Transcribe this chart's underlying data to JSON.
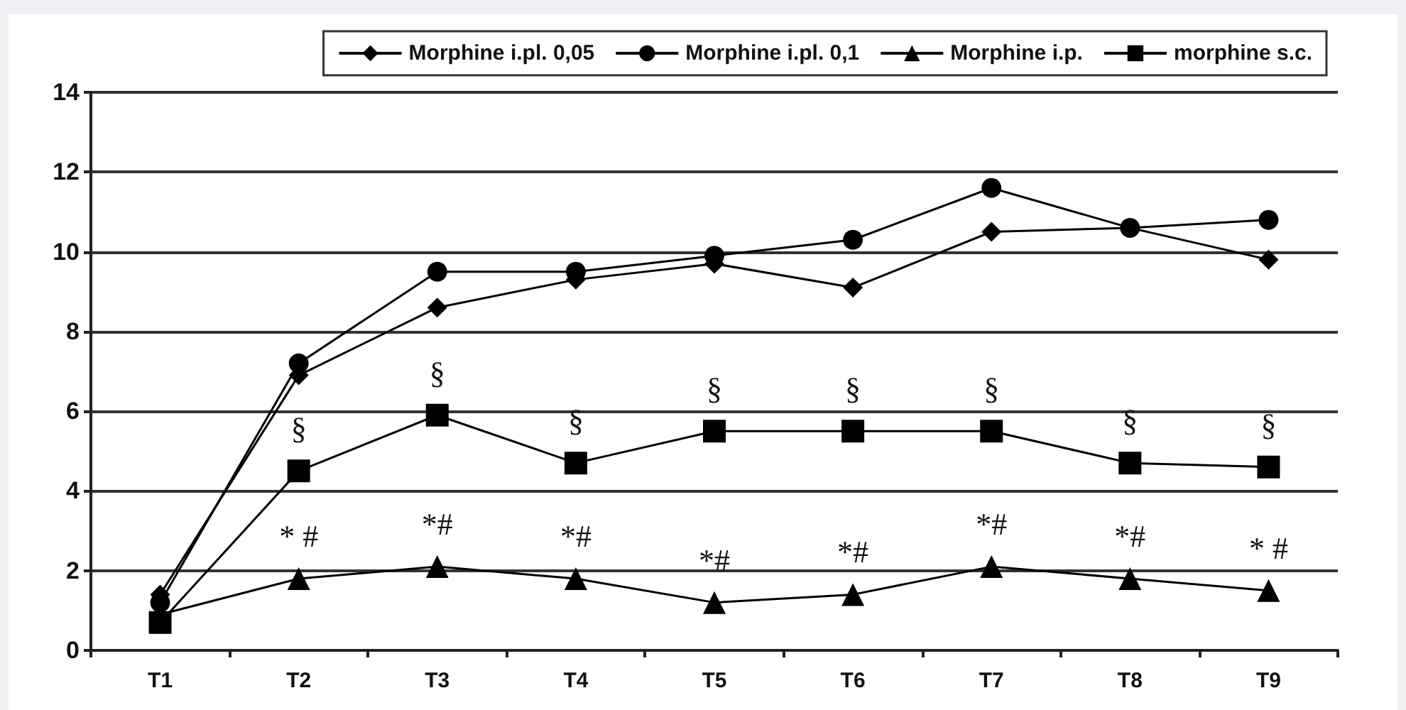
{
  "chart_data": {
    "type": "line",
    "categories": [
      "T1",
      "T2",
      "T3",
      "T4",
      "T5",
      "T6",
      "T7",
      "T8",
      "T9"
    ],
    "series": [
      {
        "name": "Morphine i.pl. 0,05",
        "color": "#000000",
        "marker": "diamond",
        "values": [
          1.4,
          6.9,
          8.6,
          9.3,
          9.7,
          9.1,
          10.5,
          10.6,
          9.8
        ]
      },
      {
        "name": "Morphine i.pl. 0,1",
        "color": "#000000",
        "marker": "circle",
        "values": [
          1.2,
          7.2,
          9.5,
          9.5,
          9.9,
          10.3,
          11.6,
          10.6,
          10.8
        ]
      },
      {
        "name": "Morphine i.p.",
        "color": "#000000",
        "marker": "triangle",
        "values": [
          0.9,
          1.8,
          2.1,
          1.8,
          1.2,
          1.4,
          2.1,
          1.8,
          1.5
        ]
      },
      {
        "name": "morphine s.c.",
        "color": "#000000",
        "marker": "square",
        "values": [
          0.7,
          4.5,
          5.9,
          4.7,
          5.5,
          5.5,
          5.5,
          4.7,
          4.6
        ]
      }
    ],
    "ylim": [
      0,
      14
    ],
    "yticks": [
      0,
      2,
      4,
      6,
      8,
      10,
      12,
      14
    ],
    "grid": "y",
    "legend": "top right",
    "annotations": [
      {
        "text": "§",
        "x": "T2",
        "y": 4.5
      },
      {
        "text": "§",
        "x": "T3",
        "y": 5.9
      },
      {
        "text": "§",
        "x": "T4",
        "y": 4.7
      },
      {
        "text": "§",
        "x": "T5",
        "y": 5.5
      },
      {
        "text": "§",
        "x": "T6",
        "y": 5.5
      },
      {
        "text": "§",
        "x": "T7",
        "y": 5.5
      },
      {
        "text": "§",
        "x": "T8",
        "y": 4.7
      },
      {
        "text": "§",
        "x": "T9",
        "y": 4.6
      },
      {
        "text": "* #",
        "x": "T2",
        "y": 1.8
      },
      {
        "text": "*#",
        "x": "T3",
        "y": 2.1
      },
      {
        "text": "*#",
        "x": "T4",
        "y": 1.8
      },
      {
        "text": "*#",
        "x": "T5",
        "y": 1.2
      },
      {
        "text": "*#",
        "x": "T6",
        "y": 1.4
      },
      {
        "text": "*#",
        "x": "T7",
        "y": 2.1
      },
      {
        "text": "*#",
        "x": "T8",
        "y": 1.8
      },
      {
        "text": "* #",
        "x": "T9",
        "y": 1.5
      }
    ]
  }
}
